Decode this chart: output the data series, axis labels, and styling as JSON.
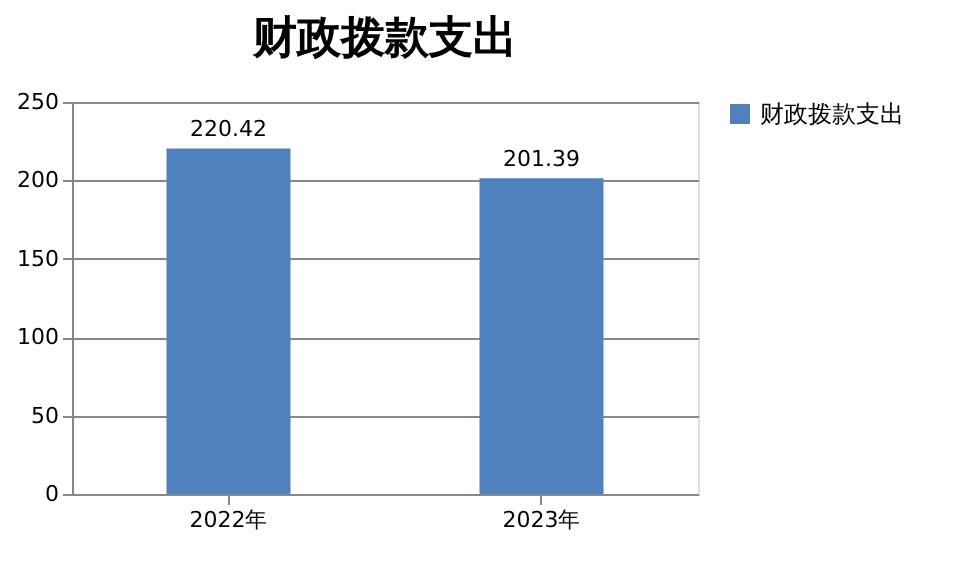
{
  "chart_data": {
    "type": "bar",
    "title": "财政拨款支出",
    "categories": [
      "2022年",
      "2023年"
    ],
    "series": [
      {
        "name": "财政拨款支出",
        "color": "#4f81bd",
        "values": [
          220.42,
          201.39
        ]
      }
    ],
    "ylim": [
      0,
      250
    ],
    "yticks": [
      0,
      50,
      100,
      150,
      200,
      250
    ],
    "grid": "y",
    "legend": "right",
    "data_labels": true
  }
}
